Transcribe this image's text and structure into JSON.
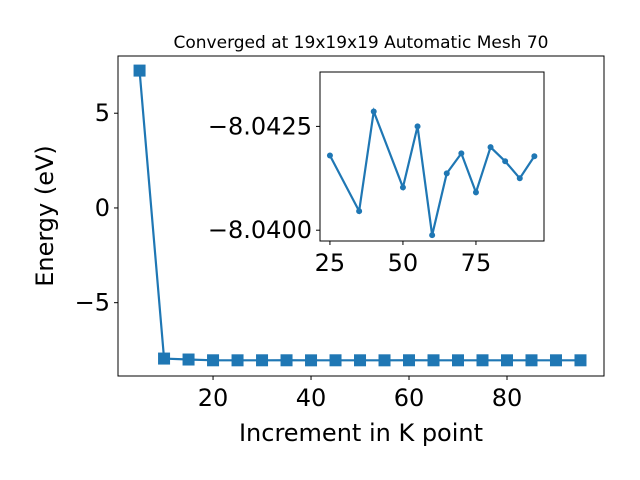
{
  "chart_data": [
    {
      "type": "line",
      "title": "Converged at 19x19x19 Automatic Mesh 70",
      "x_label": "Increment in K point",
      "y_label": "Energy (eV)",
      "marker": "square",
      "color": "#1f77b4",
      "x": [
        5,
        10,
        15,
        20,
        25,
        30,
        35,
        40,
        45,
        50,
        55,
        60,
        65,
        70,
        75,
        80,
        85,
        90,
        95
      ],
      "values": [
        7.25,
        -7.95,
        -8.0,
        -8.041,
        -8.0418,
        -8.041,
        -8.04046,
        -8.04286,
        -8.041,
        -8.04103,
        -8.0425,
        -8.03988,
        -8.04137,
        -8.04185,
        -8.04091,
        -8.042,
        -8.04166,
        -8.04125,
        -8.04178
      ],
      "xlim": [
        0.6,
        99.8
      ],
      "ylim": [
        -8.87,
        8.02
      ],
      "xticks": [
        20,
        40,
        60,
        80
      ],
      "yticks": [
        {
          "value": -5,
          "label": "−5"
        },
        0,
        5
      ]
    },
    {
      "type": "line",
      "marker": "circle",
      "color": "#1f77b4",
      "x": [
        25,
        35,
        40,
        50,
        55,
        60,
        65,
        70,
        75,
        80,
        85,
        90,
        95
      ],
      "values": [
        -8.0418,
        -8.04046,
        -8.04286,
        -8.04103,
        -8.0425,
        -8.03988,
        -8.04137,
        -8.04185,
        -8.04091,
        -8.042,
        -8.04166,
        -8.04125,
        -8.04178
      ],
      "xlim": [
        21.6,
        98.3
      ],
      "ylim": [
        -8.03974,
        -8.04381
      ],
      "xticks": [
        25,
        50,
        75
      ],
      "yticks": [
        {
          "value": -8.0425,
          "label": "−8.0425"
        },
        {
          "value": -8.04,
          "label": "−8.0400"
        }
      ]
    }
  ]
}
